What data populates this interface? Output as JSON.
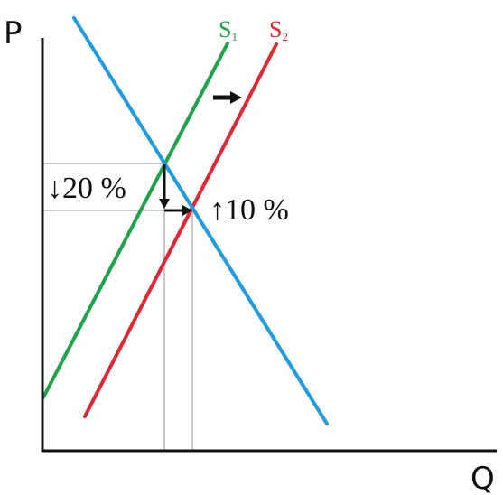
{
  "axes": {
    "y_label": "P",
    "x_label": "Q"
  },
  "curves": {
    "s1": {
      "label": "S",
      "subscript": "1",
      "color": "#1fa34a"
    },
    "s2": {
      "label": "S",
      "subscript": "2",
      "color": "#e32633"
    },
    "demand": {
      "color": "#1f9be0"
    }
  },
  "annotations": {
    "price_change": "↓20 %",
    "quantity_change": "↑10 %"
  },
  "colors": {
    "axis": "#111111",
    "guide": "#b5b5b5",
    "arrow": "#111111"
  }
}
